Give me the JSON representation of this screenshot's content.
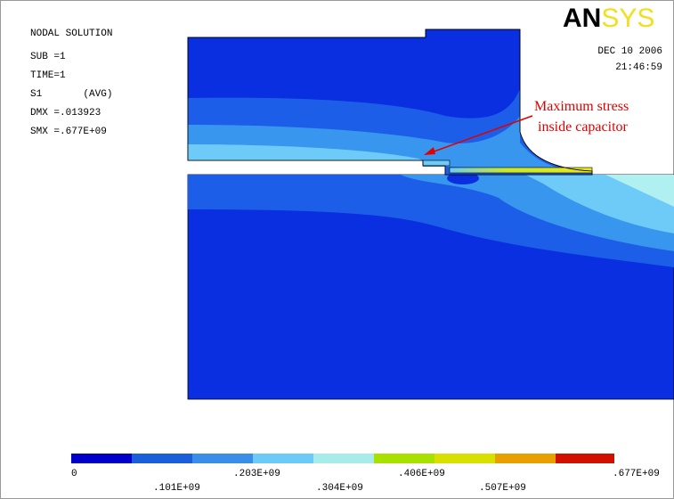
{
  "header": {
    "title": "NODAL SOLUTION",
    "lines": [
      "SUB =1",
      "TIME=1",
      "S1       (AVG)",
      "DMX =.013923",
      "SMX =.677E+09"
    ]
  },
  "logo": {
    "bold": "AN",
    "light": "SYS"
  },
  "timestamp": {
    "date": "DEC 10 2006",
    "time": "21:46:59"
  },
  "annotation": {
    "lines": [
      "Maximum stress",
      "inside capacitor"
    ]
  },
  "legend": {
    "labels": [
      "0",
      ".101E+09",
      ".203E+09",
      ".304E+09",
      ".406E+09",
      ".507E+09",
      ".677E+09"
    ]
  }
}
